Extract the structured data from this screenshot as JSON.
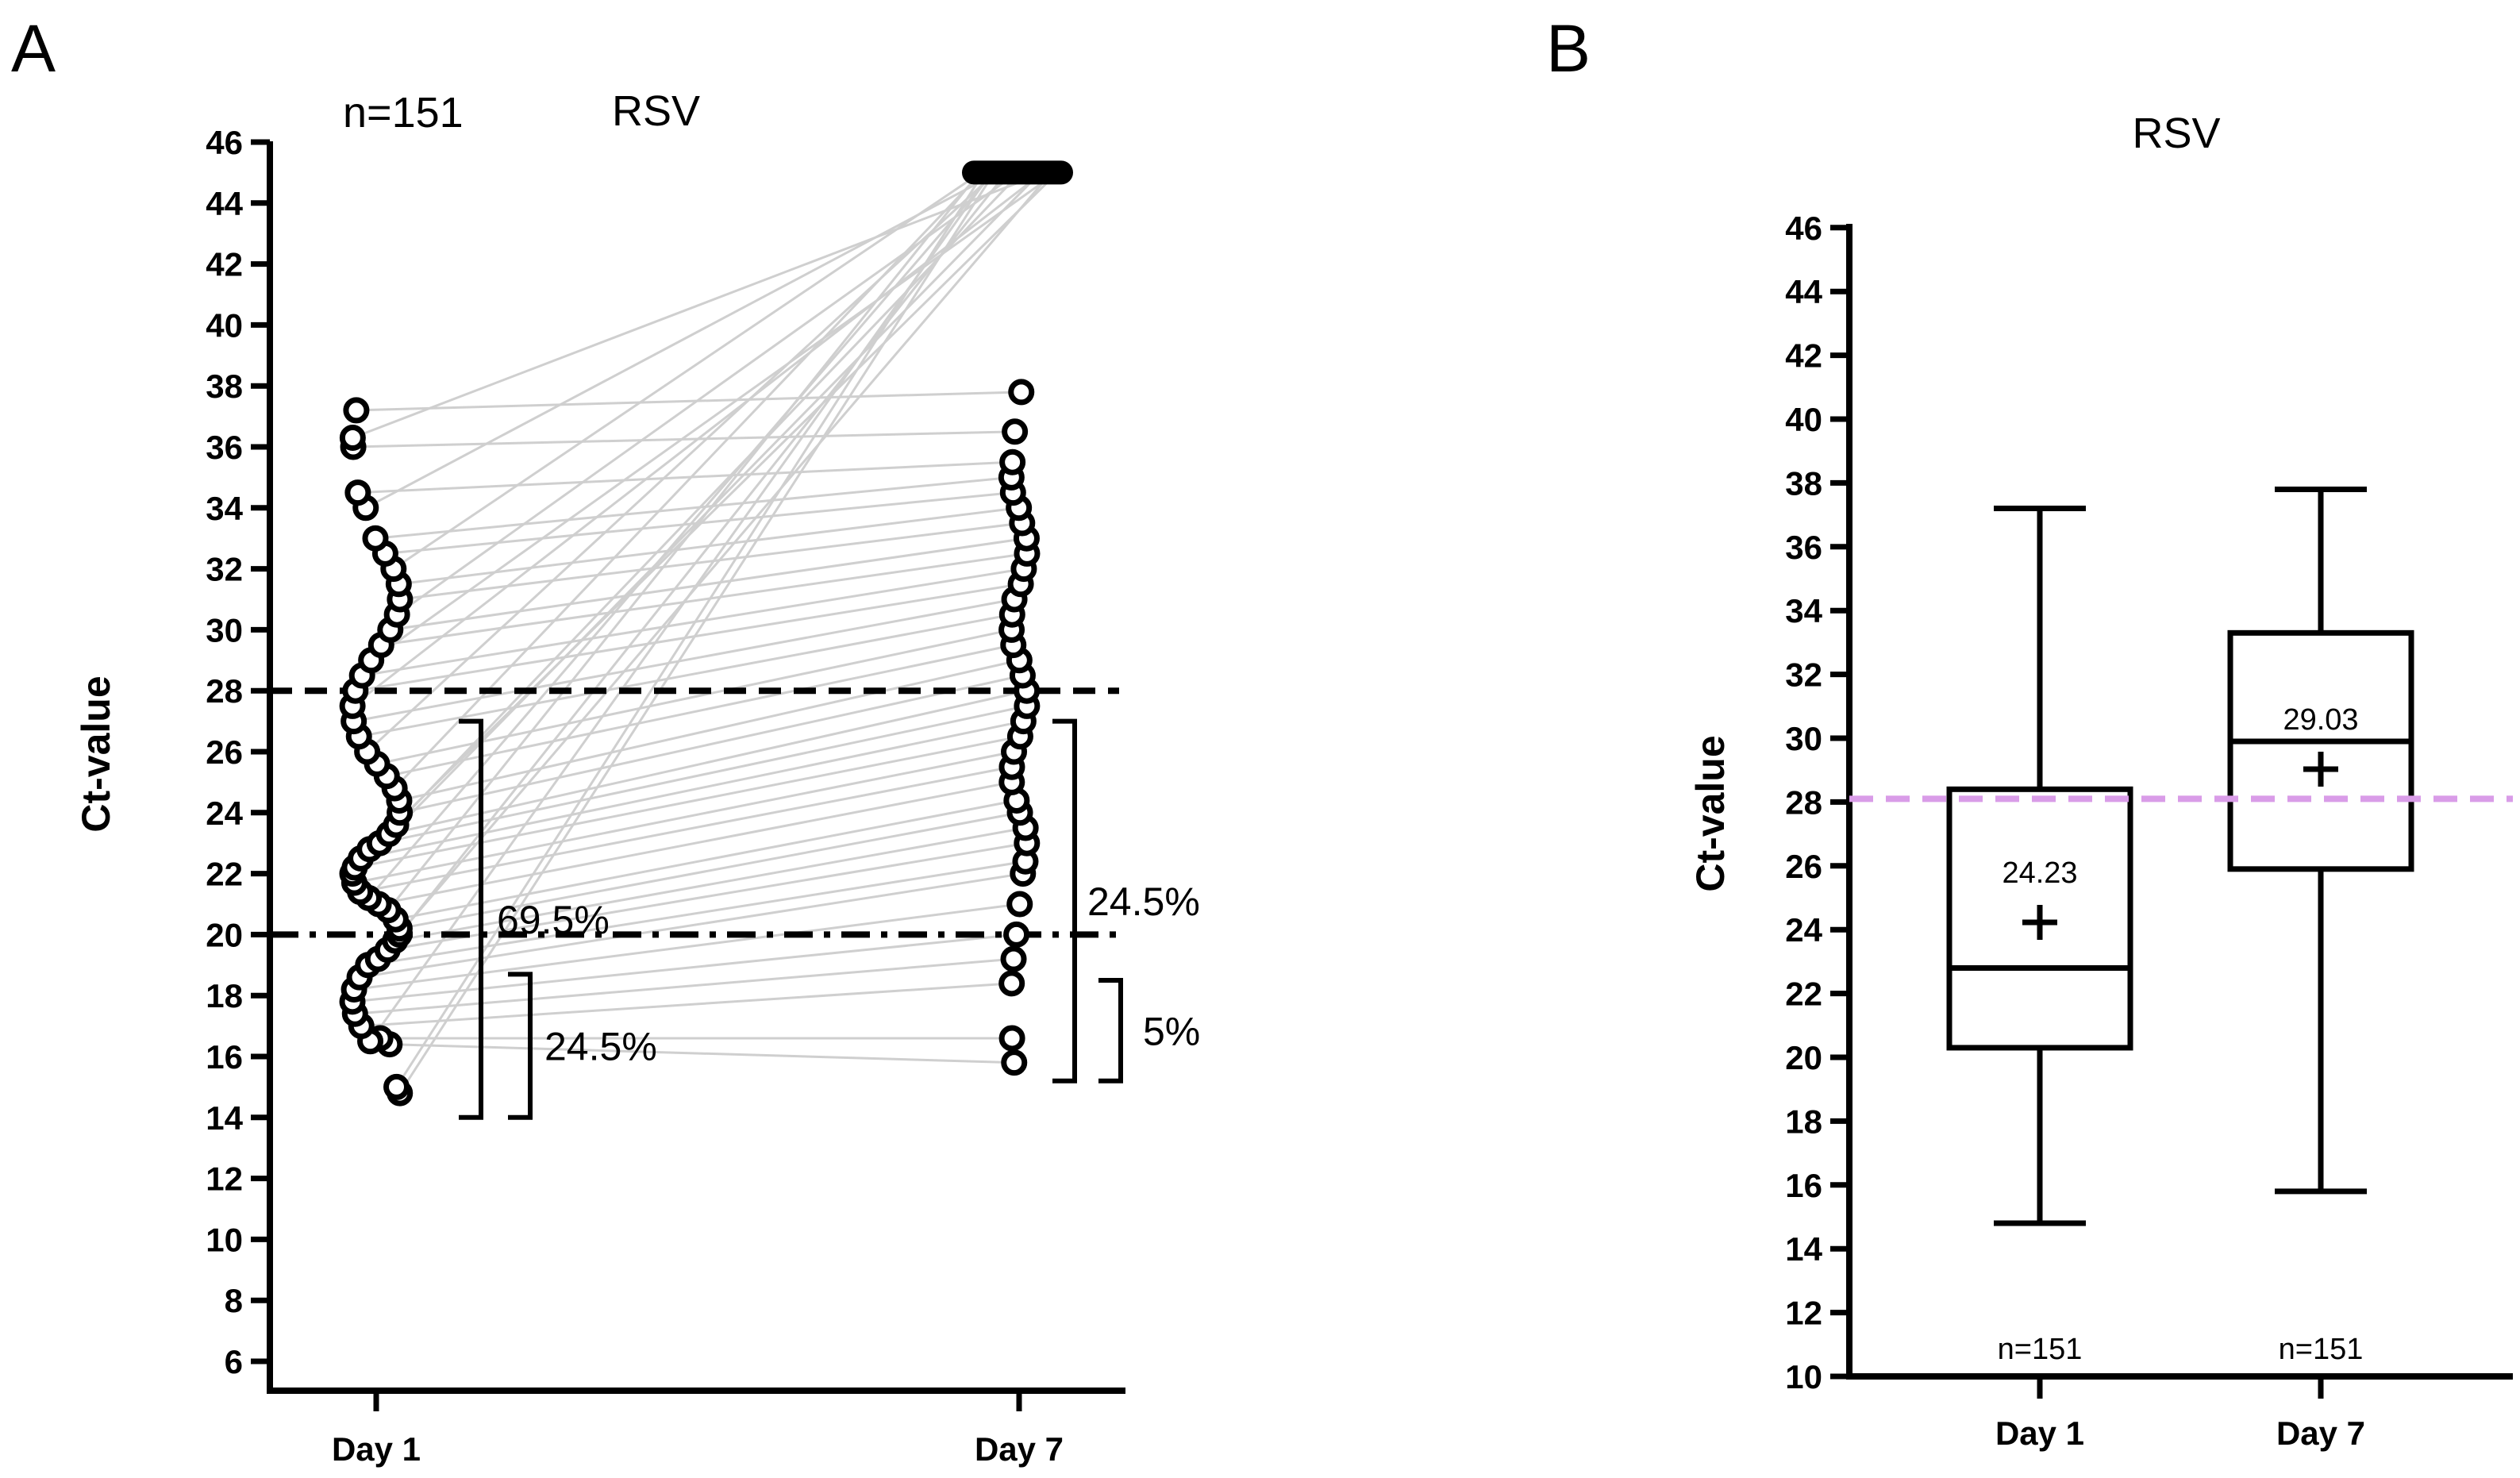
{
  "chart_data": [
    {
      "panel_label": "A",
      "type": "scatter",
      "subtype": "paired-dot-plot",
      "title": "RSV",
      "n_label": "n=151",
      "ylabel": "Ct-value",
      "xlabel": "",
      "categories": [
        "Day 1",
        "Day 7"
      ],
      "ylim": [
        5,
        46
      ],
      "yticks": [
        6,
        8,
        10,
        12,
        14,
        16,
        18,
        20,
        22,
        24,
        26,
        28,
        30,
        32,
        34,
        36,
        38,
        40,
        42,
        44,
        46
      ],
      "negative_value": 45,
      "reference_lines": [
        {
          "y": 28,
          "style": "dashed"
        },
        {
          "y": 20,
          "style": "dash-dot"
        }
      ],
      "brackets": [
        {
          "category": "Day 1",
          "from": 14,
          "to": 27,
          "label": "69.5%"
        },
        {
          "category": "Day 1",
          "from": 14,
          "to": 18.7,
          "label": "24.5%"
        },
        {
          "category": "Day 7",
          "from": 15.2,
          "to": 27,
          "label": "24.5%"
        },
        {
          "category": "Day 7",
          "from": 15.2,
          "to": 18.5,
          "label": "5%"
        }
      ],
      "pairs": [
        [
          14.8,
          45
        ],
        [
          15,
          45
        ],
        [
          16.4,
          15.8
        ],
        [
          16.6,
          16.6
        ],
        [
          16.5,
          45
        ],
        [
          17,
          18.4
        ],
        [
          17.4,
          19.2
        ],
        [
          17.8,
          20
        ],
        [
          18.2,
          21
        ],
        [
          18.6,
          22
        ],
        [
          19,
          22.4
        ],
        [
          19.2,
          45
        ],
        [
          19.5,
          23
        ],
        [
          19.8,
          23.5
        ],
        [
          20,
          45
        ],
        [
          20.2,
          24
        ],
        [
          20.5,
          24.4
        ],
        [
          20.8,
          45
        ],
        [
          21,
          25
        ],
        [
          21.2,
          45
        ],
        [
          21.4,
          25.5
        ],
        [
          21.7,
          26
        ],
        [
          22,
          45
        ],
        [
          22.2,
          26.5
        ],
        [
          22.5,
          27
        ],
        [
          22.8,
          45
        ],
        [
          23,
          27.5
        ],
        [
          23.3,
          28
        ],
        [
          23.6,
          45
        ],
        [
          24,
          28.5
        ],
        [
          24.4,
          29
        ],
        [
          24.8,
          45
        ],
        [
          25.2,
          29.5
        ],
        [
          25.6,
          30
        ],
        [
          26,
          45
        ],
        [
          26.5,
          30.5
        ],
        [
          27,
          31
        ],
        [
          27.5,
          45
        ],
        [
          28,
          31.5
        ],
        [
          28.5,
          32
        ],
        [
          29,
          45
        ],
        [
          29.5,
          32.5
        ],
        [
          30,
          33
        ],
        [
          30.5,
          45
        ],
        [
          31,
          33.5
        ],
        [
          31.5,
          34
        ],
        [
          32,
          45
        ],
        [
          32.5,
          34.5
        ],
        [
          33,
          35
        ],
        [
          34,
          45
        ],
        [
          34.5,
          35.5
        ],
        [
          36,
          36.5
        ],
        [
          36.3,
          45
        ],
        [
          37.2,
          37.8
        ]
      ]
    },
    {
      "panel_label": "B",
      "type": "box",
      "title": "RSV",
      "ylabel": "Ct-value",
      "xlabel": "",
      "categories": [
        "Day 1",
        "Day 7"
      ],
      "ylim": [
        10,
        46
      ],
      "yticks": [
        10,
        12,
        14,
        16,
        18,
        20,
        22,
        24,
        26,
        28,
        30,
        32,
        34,
        36,
        38,
        40,
        42,
        44,
        46
      ],
      "reference_line": {
        "y": 28.1,
        "color": "#d99ce8",
        "style": "dashed"
      },
      "series": [
        {
          "name": "Day 1",
          "min": 14.8,
          "q1": 20.3,
          "median": 22.8,
          "q3": 28.4,
          "max": 37.2,
          "mean": 24.23,
          "mean_label": "24.23",
          "n_label": "n=151"
        },
        {
          "name": "Day 7",
          "min": 15.8,
          "q1": 25.9,
          "median": 29.9,
          "q3": 33.3,
          "max": 37.8,
          "mean": 29.03,
          "mean_label": "29.03",
          "n_label": "n=151"
        }
      ]
    }
  ]
}
